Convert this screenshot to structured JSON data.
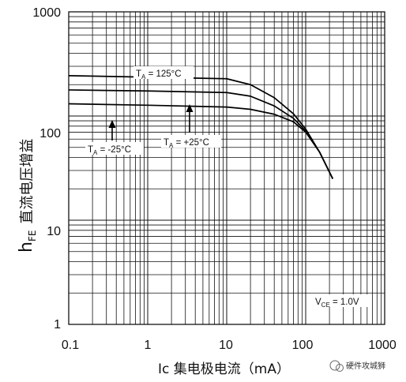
{
  "chart_data": {
    "type": "line",
    "xscale": "log",
    "yscale": "log",
    "xlim": [
      0.1,
      1000
    ],
    "ylim": [
      1,
      1000
    ],
    "grid": true,
    "xticks": [
      "0.1",
      "1",
      "10",
      "100",
      "1000"
    ],
    "yticks": [
      "1",
      "10",
      "100",
      "1000"
    ],
    "xlabel": "Ic  集电极电流（mA）",
    "ylabel": {
      "symbol": "h",
      "sub": "FE",
      "text": "直流电压增益"
    },
    "series": [
      {
        "name": "T_A = 125°C",
        "label_main": "T",
        "label_sub": "A",
        "label_rest": " = 125°C",
        "x": [
          0.1,
          1,
          10,
          20,
          40,
          70,
          100,
          150,
          220
        ],
        "y": [
          244,
          236,
          228,
          200,
          150,
          105,
          75,
          45,
          25
        ]
      },
      {
        "name": "T_A = +25°C",
        "label_main": "T",
        "label_sub": "A",
        "label_rest": " = +25°C",
        "x": [
          0.1,
          1,
          10,
          20,
          40,
          70,
          100,
          150,
          220
        ],
        "y": [
          178,
          174,
          168,
          155,
          125,
          95,
          72,
          45,
          25
        ]
      },
      {
        "name": "T_A = -25°C",
        "label_main": "T",
        "label_sub": "A",
        "label_rest": " = -25°C",
        "x": [
          0.1,
          1,
          10,
          20,
          40,
          70,
          100,
          150,
          220
        ],
        "y": [
          131,
          127,
          122,
          116,
          104,
          88,
          70,
          45,
          25
        ]
      }
    ],
    "annotation": {
      "main": "V",
      "sub": "CE",
      "rest": " = 1.0V"
    }
  },
  "watermark": "硬件攻城狮"
}
